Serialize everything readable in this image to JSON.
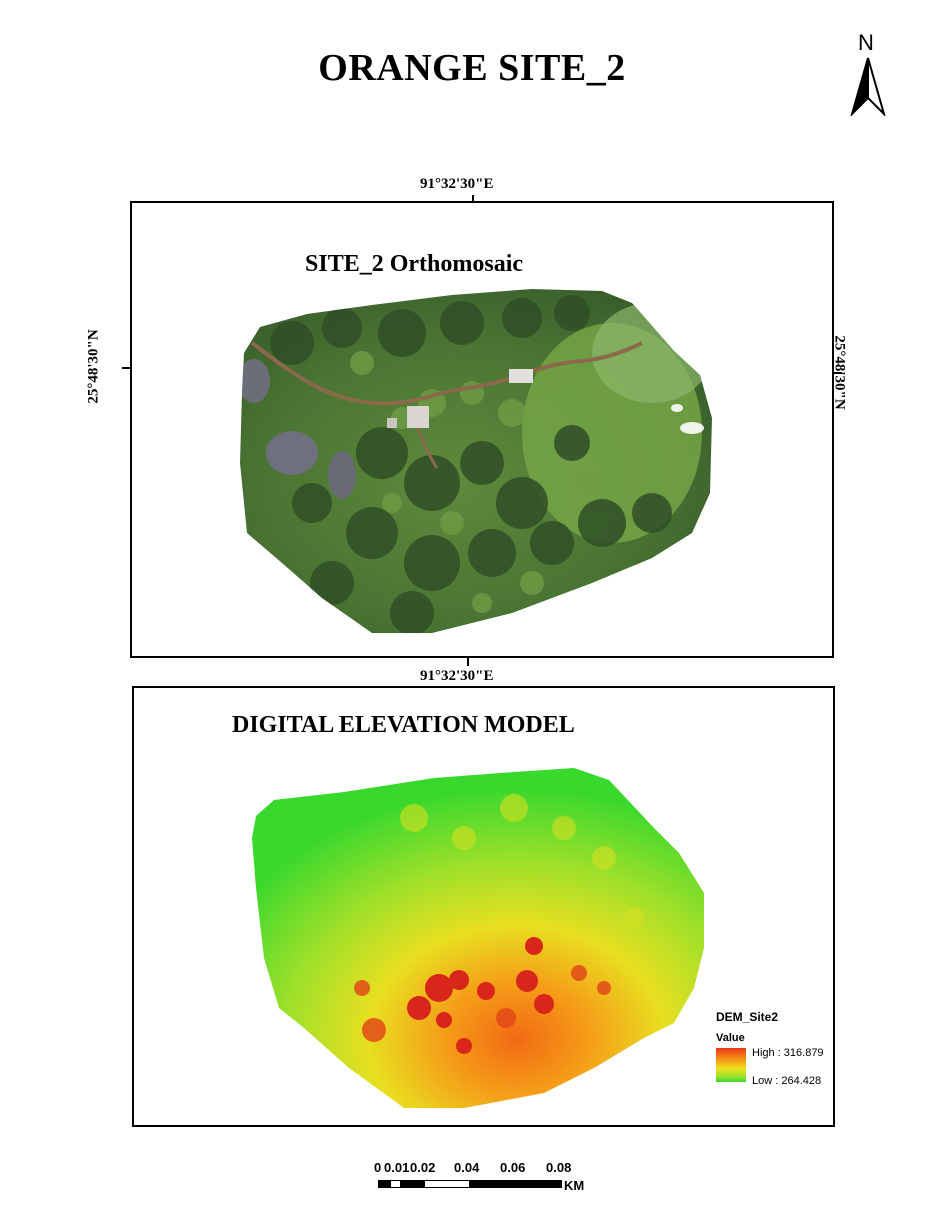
{
  "map_title": "ORANGE SITE_2",
  "north_arrow": {
    "label": "N",
    "icon": "north-arrow-icon"
  },
  "orthomosaic_panel": {
    "title": "SITE_2 Orthomosaic",
    "top_longitude": "91°32'30\"E",
    "bottom_longitude": "91°32'30\"E",
    "left_latitude": "25°48'30\"N",
    "right_latitude": "25°48'30\"N"
  },
  "dem_panel": {
    "title": "DIGITAL ELEVATION MODEL",
    "legend": {
      "layer_name": "DEM_Site2",
      "field": "Value",
      "high_label": "High : 316.879",
      "low_label": "Low : 264.428",
      "high_value": 316.879,
      "low_value": 264.428,
      "colors": [
        "#e8381c",
        "#f58b17",
        "#eee020",
        "#9be229",
        "#32d92e"
      ]
    }
  },
  "scale_bar": {
    "labels": [
      "0",
      "0.01",
      "0.02",
      "0.04",
      "0.06",
      "0.08"
    ],
    "unit": "KM"
  }
}
